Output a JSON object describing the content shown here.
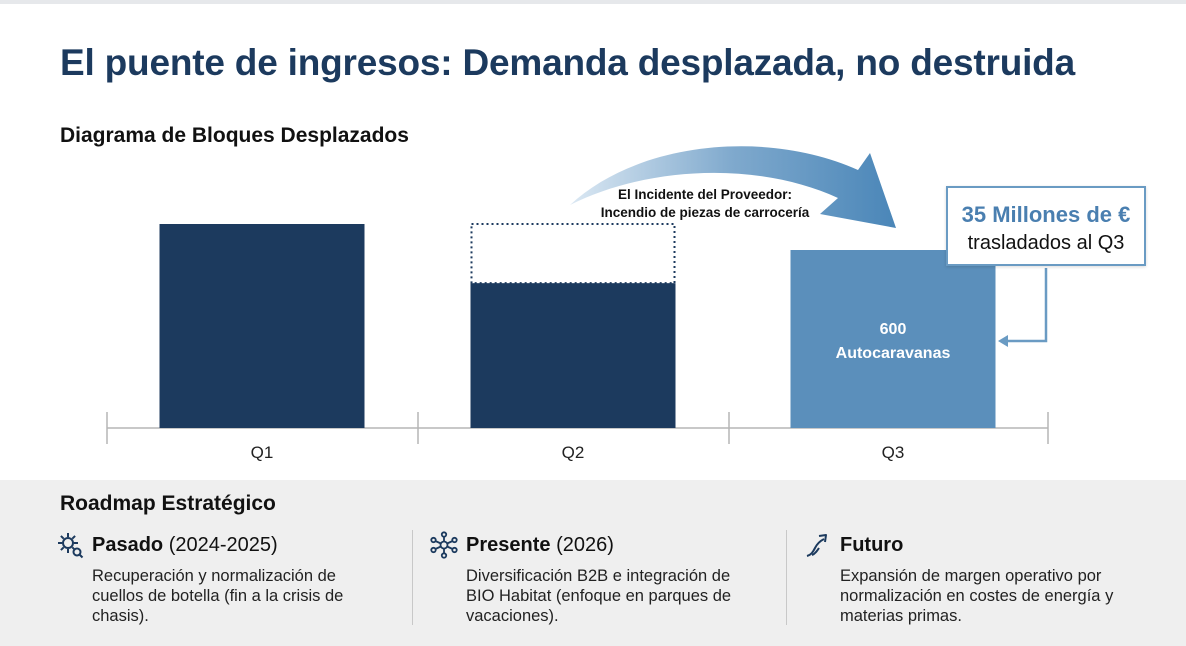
{
  "title": "El puente de ingresos: Demanda desplazada, no destruida",
  "chart_data": {
    "type": "bar",
    "title": "Diagrama de Bloques Desplazados",
    "categories": [
      "Q1",
      "Q2",
      "Q3"
    ],
    "series": [
      {
        "values": [
          100,
          71,
          100
        ]
      }
    ],
    "displaced": {
      "from": "Q2",
      "to": "Q3",
      "value": 29
    },
    "bar_labels": {
      "Q3": [
        "600",
        "Autocaravanas"
      ]
    },
    "annotations": {
      "incident": [
        "El Incidente del Proveedor:",
        "Incendio de piezas de carrocería"
      ],
      "callout_main": "35 Millones de €",
      "callout_sub": "trasladados al Q3"
    },
    "ylim": [
      0,
      100
    ],
    "colors": {
      "primary": "#1c3a5e",
      "shifted": "#5b8fbb",
      "arrow": "#4a86b8"
    }
  },
  "roadmap": {
    "title": "Roadmap Estratégico",
    "columns": [
      {
        "icon": "gear-icon",
        "title": "Pasado",
        "period": "(2024-2025)",
        "text": "Recuperación y normalización de cuellos de botella (fin a la crisis de chasis)."
      },
      {
        "icon": "network-icon",
        "title": "Presente",
        "period": "(2026)",
        "text": "Diversificación B2B e integración de BIO Habitat (enfoque en parques de vacaciones)."
      },
      {
        "icon": "growth-arrow-icon",
        "title": "Futuro",
        "period": "",
        "text": "Expansión de margen operativo por normalización en costes de energía y materias primas."
      }
    ]
  }
}
